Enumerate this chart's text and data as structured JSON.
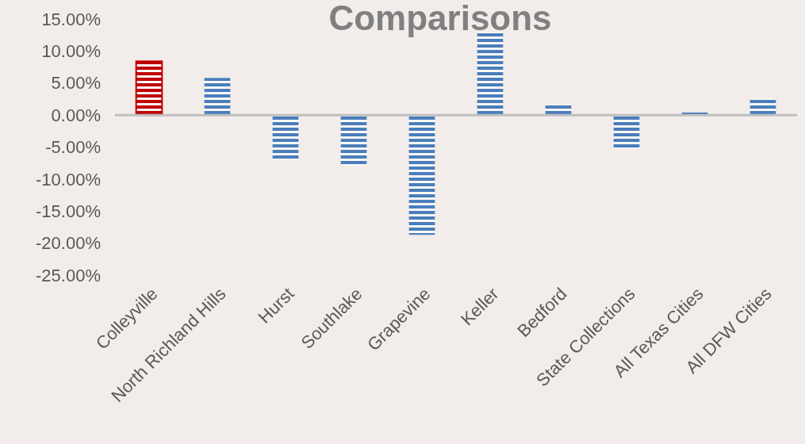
{
  "chart_data": {
    "type": "bar",
    "title": "Comparisons",
    "categories": [
      "Colleyville",
      "North Richland Hills",
      "Hurst",
      "Southlake",
      "Grapevine",
      "Keller",
      "Bedford",
      "State Collections",
      "All Texas Cities",
      "All DFW Cities"
    ],
    "values": [
      8.4,
      5.8,
      -7.0,
      -7.9,
      -18.7,
      13.0,
      1.6,
      -5.3,
      0.4,
      2.6
    ],
    "colors": [
      "#c00000",
      "#4a7ebb",
      "#4a7ebb",
      "#4a7ebb",
      "#4a7ebb",
      "#4a7ebb",
      "#4a7ebb",
      "#4a7ebb",
      "#4a7ebb",
      "#4a7ebb"
    ],
    "ylim": [
      -25,
      15
    ],
    "yticks": [
      {
        "value": 15,
        "label": "15.00%"
      },
      {
        "value": 10,
        "label": "10.00%"
      },
      {
        "value": 5,
        "label": "5.00%"
      },
      {
        "value": 0,
        "label": "0.00%"
      },
      {
        "value": -5,
        "label": "-5.00%"
      },
      {
        "value": -10,
        "label": "-10.00%"
      },
      {
        "value": -15,
        "label": "-15.00%"
      },
      {
        "value": -20,
        "label": "-20.00%"
      },
      {
        "value": -25,
        "label": "-25.00%"
      }
    ]
  }
}
